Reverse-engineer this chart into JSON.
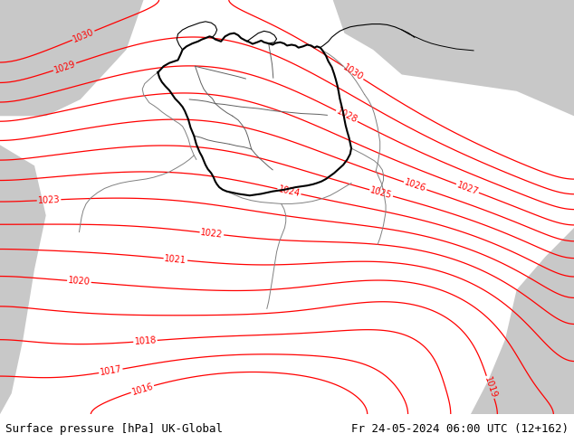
{
  "title_left": "Surface pressure [hPa] UK-Global",
  "title_right": "Fr 24-05-2024 06:00 UTC (12+162)",
  "bg_land": "#c8e8a0",
  "bg_sea": "#c8c8c8",
  "border_black": "#000000",
  "border_gray": "#808080",
  "contour_red": "#ff0000",
  "font_family": "monospace",
  "label_fontsize": 9,
  "contour_lw": 0.9,
  "contour_fontsize": 7,
  "figsize": [
    6.34,
    4.9
  ],
  "dpi": 100
}
